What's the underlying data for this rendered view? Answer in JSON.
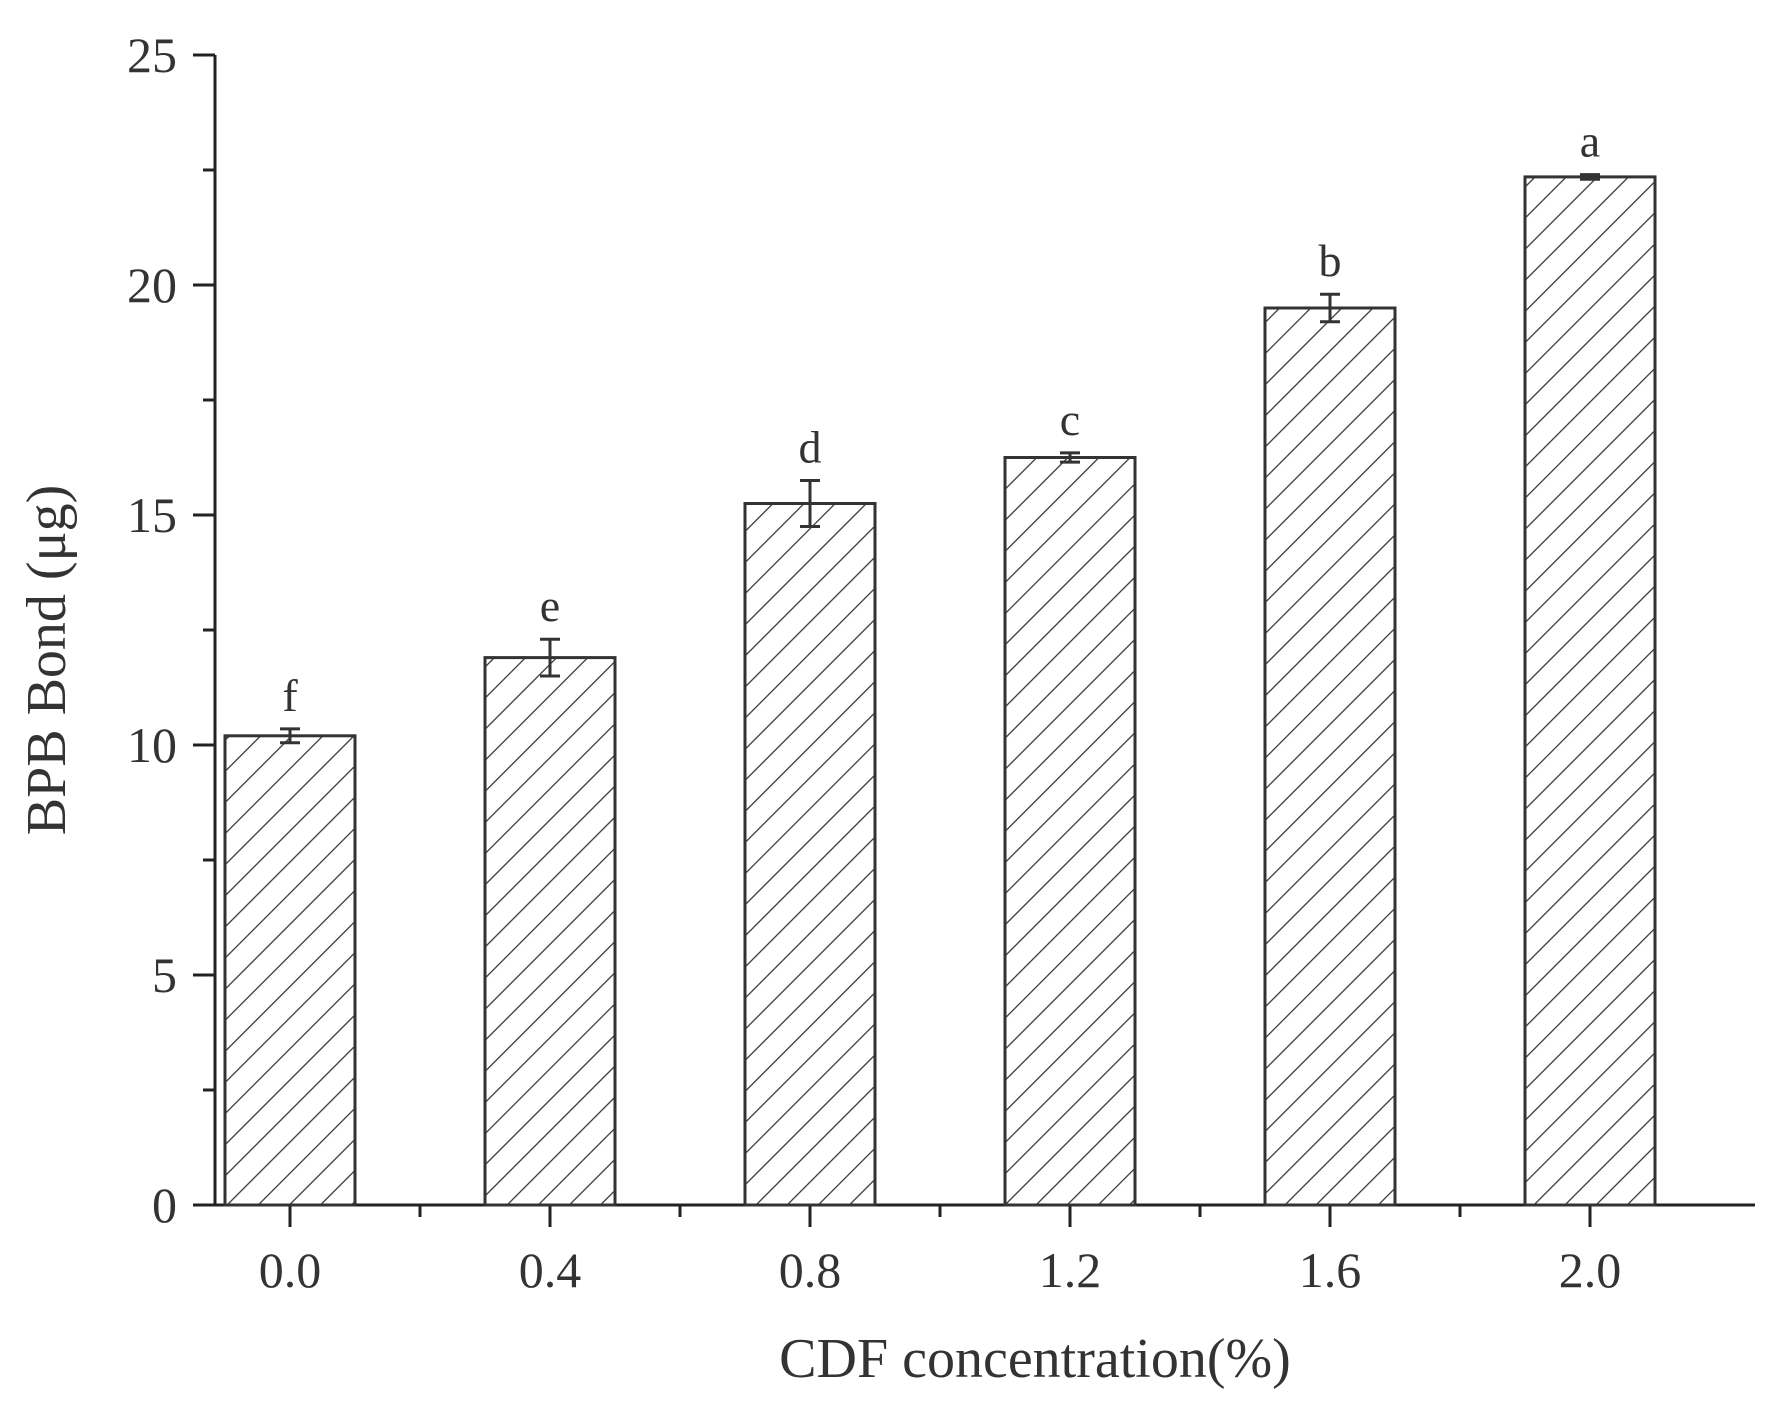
{
  "chart_data": {
    "type": "bar",
    "title": "",
    "xlabel": "CDF concentration(%)",
    "ylabel": "BPB Bond (μg)",
    "categories": [
      "0.0",
      "0.4",
      "0.8",
      "1.2",
      "1.6",
      "2.0"
    ],
    "values": [
      10.2,
      11.9,
      15.25,
      16.25,
      19.5,
      22.35
    ],
    "errors": [
      0.15,
      0.4,
      0.5,
      0.1,
      0.3,
      0.05
    ],
    "labels": [
      "f",
      "e",
      "d",
      "c",
      "b",
      "a"
    ],
    "ylim": [
      0,
      25
    ],
    "yticks": [
      "0",
      "5",
      "10",
      "15",
      "20",
      "25"
    ],
    "grid": false,
    "legend": "none",
    "bar_fill": "hatched",
    "colors": {
      "stroke": "#333333",
      "background": "#ffffff"
    }
  }
}
